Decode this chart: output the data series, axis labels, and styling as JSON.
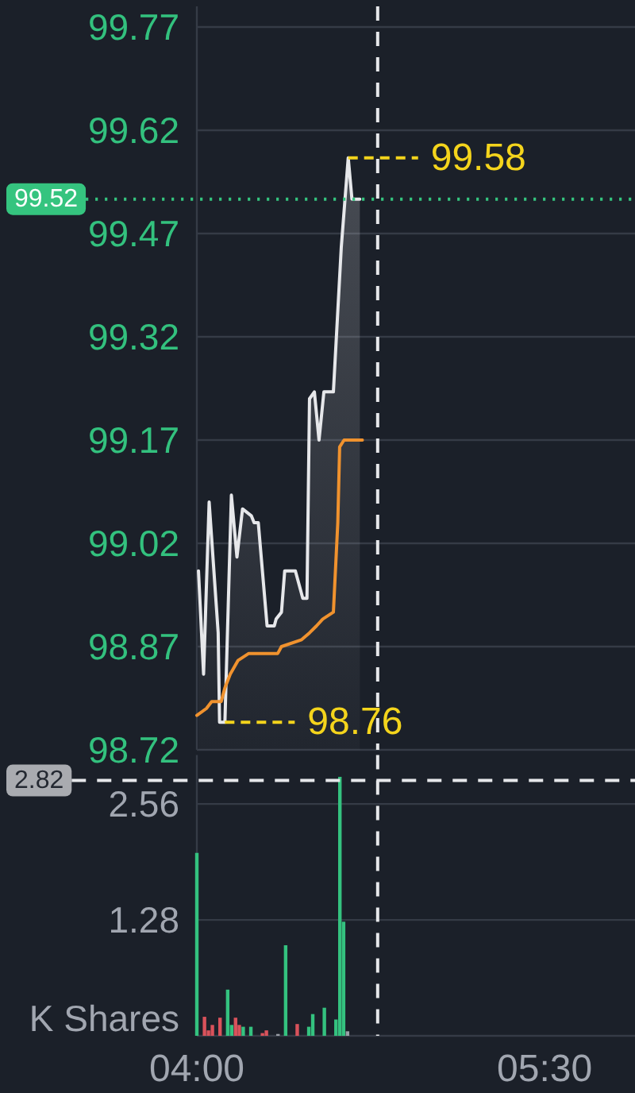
{
  "chart_data": [
    {
      "type": "line",
      "series": [
        {
          "type": "area",
          "color": "#e6e7ea",
          "x": [
            4.007,
            4.029,
            4.053,
            4.092,
            4.098,
            4.121,
            4.149,
            4.173,
            4.197,
            4.235,
            4.247,
            4.265,
            4.303,
            4.334,
            4.342,
            4.365,
            4.379,
            4.425,
            4.457,
            4.475,
            4.486,
            4.507,
            4.527,
            4.548,
            4.589,
            4.623,
            4.653,
            4.669,
            4.703
          ],
          "values": [
            98.98,
            98.83,
            99.08,
            98.89,
            98.76,
            98.76,
            99.09,
            99.0,
            99.07,
            99.06,
            99.05,
            99.05,
            98.9,
            98.9,
            98.91,
            98.92,
            98.98,
            98.98,
            98.94,
            98.94,
            99.23,
            99.24,
            99.17,
            99.24,
            99.24,
            99.45,
            99.58,
            99.52,
            99.52
          ]
        },
        {
          "type": "line",
          "color": "#f0922e",
          "x": [
            4.0,
            4.041,
            4.064,
            4.105,
            4.121,
            4.144,
            4.178,
            4.224,
            4.349,
            4.365,
            4.452,
            4.486,
            4.516,
            4.543,
            4.589,
            4.608,
            4.616,
            4.635,
            4.714
          ],
          "values": [
            98.77,
            98.78,
            98.79,
            98.79,
            98.81,
            98.83,
            98.85,
            98.86,
            98.86,
            98.87,
            98.88,
            98.89,
            98.9,
            98.91,
            98.92,
            99.05,
            99.16,
            99.17,
            99.17
          ]
        }
      ],
      "xlim": [
        4,
        5.89
      ],
      "ylim": [
        98.72,
        99.8
      ],
      "yticks": [
        98.72,
        98.87,
        99.02,
        99.17,
        99.32,
        99.47,
        99.62,
        99.77
      ],
      "grid": "y",
      "tick_labels": "y",
      "ref_lines": [
        {
          "axis": "y",
          "value": 99.52,
          "label": "99.52",
          "color": "#35c47f",
          "line_style": "dotted"
        },
        {
          "axis": "x",
          "value": 4.78,
          "color": "#e6e7ea",
          "line_style": "dashed"
        }
      ],
      "annotations": [
        {
          "text": "99.58",
          "x": 4.653,
          "y": 99.58
        },
        {
          "text": "98.76",
          "x": 4.121,
          "y": 98.76
        }
      ]
    },
    {
      "type": "bar",
      "x": [
        4,
        4.033,
        4.05,
        4.067,
        4.1,
        4.133,
        4.15,
        4.167,
        4.183,
        4.2,
        4.233,
        4.283,
        4.3,
        4.35,
        4.383,
        4.433,
        4.483,
        4.5,
        4.55,
        4.6,
        4.617,
        4.633,
        4.65
      ],
      "values": [
        2.02,
        0.21,
        0.06,
        0.12,
        0.2,
        0.51,
        0.12,
        0.2,
        0.12,
        0.1,
        0.1,
        0.03,
        0.06,
        0.02,
        1.0,
        0.13,
        0.1,
        0.24,
        0.31,
        0.18,
        2.86,
        1.26,
        0.05
      ],
      "colors": [
        "#34c27f",
        "#d9525b",
        "#d9525b",
        "#d9525b",
        "#d9525b",
        "#34c27f",
        "#34c27f",
        "#d9525b",
        "#d9525b",
        "#34c27f",
        "#34c27f",
        "#d9525b",
        "#d9525b",
        "#9a9ea6",
        "#34c27f",
        "#d9525b",
        "#34c27f",
        "#34c27f",
        "#34c27f",
        "#34c27f",
        "#34c27f",
        "#34c27f",
        "#9a9ea6"
      ],
      "xlim": [
        4,
        5.89
      ],
      "xticks": [
        {
          "value": 4,
          "label": "04:00"
        },
        {
          "value": 5.5,
          "label": "05:30"
        }
      ],
      "ylim": [
        0,
        3.1
      ],
      "yticks": [
        1.28,
        2.56
      ],
      "ylabel": "K Shares",
      "grid": "y",
      "ref_lines": [
        {
          "axis": "x",
          "value": 4.78,
          "color": "#e6e7ea",
          "line_style": "dashed"
        },
        {
          "axis": "y",
          "value": 2.82,
          "label": "2.82",
          "color": "#e6e7ea",
          "line_style": "dashed"
        }
      ]
    }
  ]
}
